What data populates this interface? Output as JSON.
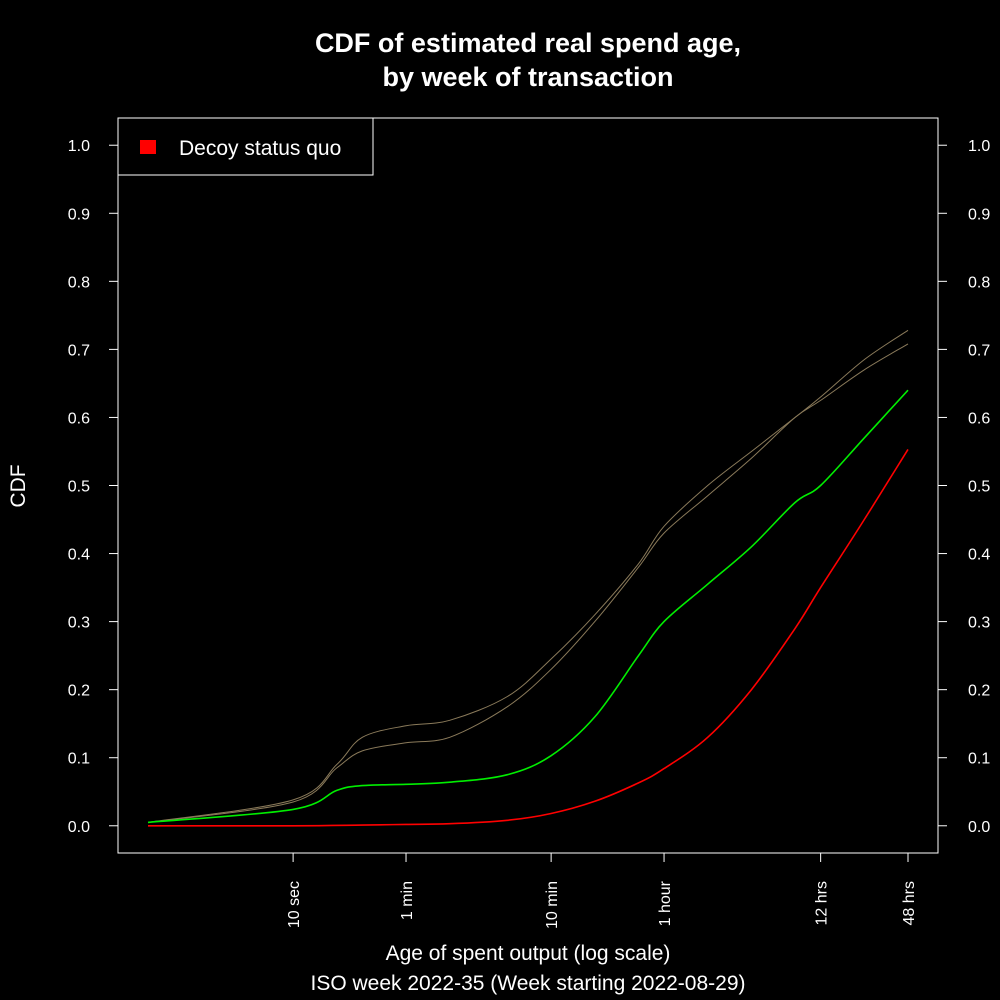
{
  "chart_data": {
    "type": "line",
    "title_lines": [
      "CDF of estimated real spend age,",
      "by week of transaction"
    ],
    "xlabel": "Age of spent output (log scale)",
    "subtitle": "ISO week 2022-35 (Week starting 2022-08-29)",
    "ylabel": "CDF",
    "x_scale": "log",
    "x_unit": "seconds",
    "xlim": [
      1,
      172800
    ],
    "ylim": [
      -0.04,
      1.04
    ],
    "x_ticks": [
      {
        "value": 10,
        "label": "10 sec"
      },
      {
        "value": 60,
        "label": "1 min"
      },
      {
        "value": 600,
        "label": "10 min"
      },
      {
        "value": 3600,
        "label": "1 hour"
      },
      {
        "value": 43200,
        "label": "12 hrs"
      },
      {
        "value": 172800,
        "label": "48 hrs"
      }
    ],
    "y_ticks": [
      {
        "value": 0.0,
        "label": "0.0"
      },
      {
        "value": 0.1,
        "label": "0.1"
      },
      {
        "value": 0.2,
        "label": "0.2"
      },
      {
        "value": 0.3,
        "label": "0.3"
      },
      {
        "value": 0.4,
        "label": "0.4"
      },
      {
        "value": 0.5,
        "label": "0.5"
      },
      {
        "value": 0.6,
        "label": "0.6"
      },
      {
        "value": 0.7,
        "label": "0.7"
      },
      {
        "value": 0.8,
        "label": "0.8"
      },
      {
        "value": 0.9,
        "label": "0.9"
      },
      {
        "value": 1.0,
        "label": "1.0"
      }
    ],
    "legend_position": "top-left",
    "grid": false,
    "series": [
      {
        "name": "Decoy status quo",
        "color": "#ff0000",
        "x": [
          1,
          10,
          30,
          60,
          120,
          300,
          600,
          1200,
          2400,
          3600,
          7200,
          14400,
          28800,
          43200,
          86400,
          172800
        ],
        "values": [
          0.0,
          0.0,
          0.001,
          0.002,
          0.003,
          0.008,
          0.018,
          0.036,
          0.063,
          0.084,
          0.13,
          0.2,
          0.29,
          0.35,
          0.45,
          0.553
        ]
      },
      {
        "color": "#00ee00",
        "x": [
          1,
          10,
          20,
          30,
          60,
          120,
          300,
          600,
          1200,
          2400,
          3600,
          7200,
          14400,
          28800,
          43200,
          86400,
          172800
        ],
        "values": [
          0.005,
          0.024,
          0.052,
          0.059,
          0.061,
          0.064,
          0.075,
          0.103,
          0.16,
          0.25,
          0.3,
          0.355,
          0.41,
          0.475,
          0.5,
          0.57,
          0.64
        ]
      },
      {
        "color": "#8a7a5a",
        "x": [
          1,
          10,
          20,
          30,
          60,
          120,
          300,
          600,
          1200,
          2400,
          3600,
          7200,
          14400,
          28800,
          43200,
          86400,
          172800
        ],
        "values": [
          0.005,
          0.035,
          0.085,
          0.11,
          0.122,
          0.13,
          0.175,
          0.23,
          0.3,
          0.38,
          0.43,
          0.485,
          0.54,
          0.6,
          0.625,
          0.67,
          0.708
        ]
      },
      {
        "color": "#8a7a5a",
        "x": [
          1,
          10,
          20,
          30,
          60,
          120,
          300,
          600,
          1200,
          2400,
          3600,
          7200,
          14400,
          28800,
          43200,
          86400,
          172800
        ],
        "values": [
          0.005,
          0.038,
          0.09,
          0.13,
          0.147,
          0.155,
          0.19,
          0.245,
          0.31,
          0.385,
          0.44,
          0.5,
          0.55,
          0.6,
          0.63,
          0.685,
          0.728
        ]
      }
    ]
  }
}
